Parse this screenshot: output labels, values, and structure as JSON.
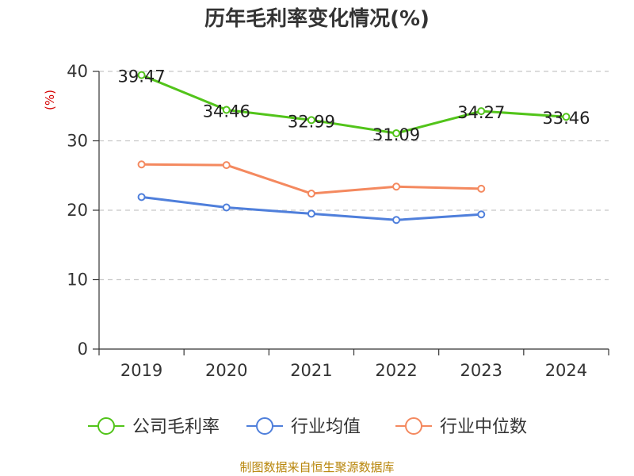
{
  "chart_data": {
    "type": "line",
    "title": "历年毛利率变化情况(%)",
    "ylabel": "(%)",
    "xlabel": "",
    "categories": [
      "2019",
      "2020",
      "2021",
      "2022",
      "2023",
      "2024"
    ],
    "ylim": [
      0,
      40
    ],
    "yticks": [
      0,
      10,
      20,
      30,
      40
    ],
    "grid": true,
    "legend_position": "bottom",
    "series": [
      {
        "name": "公司毛利率",
        "color": "#52c41a",
        "values": [
          39.47,
          34.46,
          32.99,
          31.09,
          34.27,
          33.46
        ],
        "labels": [
          "39.47",
          "34.46",
          "32.99",
          "31.09",
          "34.27",
          "33.46"
        ]
      },
      {
        "name": "行业均值",
        "color": "#4f7fdb",
        "values": [
          21.9,
          20.4,
          19.5,
          18.6,
          19.4,
          null
        ]
      },
      {
        "name": "行业中位数",
        "color": "#f4895f",
        "values": [
          26.6,
          26.5,
          22.4,
          23.4,
          23.1,
          null
        ]
      }
    ],
    "source": "制图数据来自恒生聚源数据库"
  }
}
